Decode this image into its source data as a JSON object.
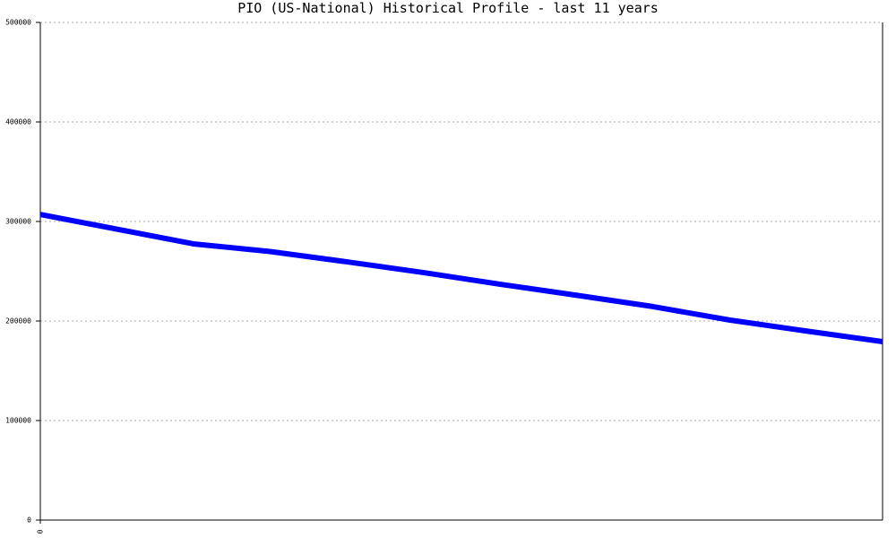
{
  "chart_data": {
    "type": "line",
    "title": "PIO (US-National) Historical Profile - last 11 years",
    "x": [
      0,
      1,
      2,
      3,
      4,
      5,
      6,
      7,
      8,
      9,
      10,
      11
    ],
    "series": [
      {
        "name": "PIO",
        "color": "#0000ff",
        "values": [
          307000,
          292300,
          277500,
          269800,
          259500,
          248700,
          237000,
          225900,
          214500,
          201000,
          190000,
          179300
        ]
      }
    ],
    "xlim": [
      0,
      11
    ],
    "xticks": [
      0
    ],
    "ylim": [
      0,
      500000
    ],
    "yticks": [
      0,
      100000,
      200000,
      300000,
      400000,
      500000
    ],
    "grid": true
  }
}
